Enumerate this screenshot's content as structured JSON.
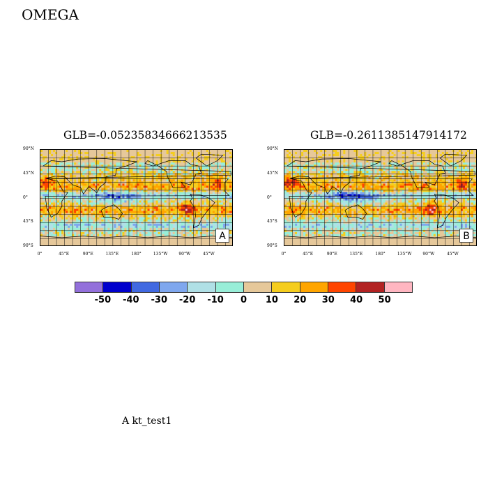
{
  "figure_title": "OMEGA",
  "panels": [
    {
      "title": "GLB=-0.05235834666213535",
      "label": "A",
      "y_ticks": [
        "90°N",
        "45°N",
        "0°",
        "45°S",
        "90°S"
      ],
      "x_ticks": [
        "0°",
        "45°E",
        "90°E",
        "135°E",
        "180°",
        "135°W",
        "90°W",
        "45°W"
      ]
    },
    {
      "title": "GLB=-0.2611385147914172",
      "label": "B",
      "y_ticks": [
        "90°N",
        "45°N",
        "0°",
        "45°S",
        "90°S"
      ],
      "x_ticks": [
        "0°",
        "45°E",
        "90°E",
        "135°E",
        "180°",
        "135°W",
        "90°W",
        "45°W"
      ]
    }
  ],
  "colorbar": {
    "colors": [
      "#9370DB",
      "#0000CD",
      "#4169E1",
      "#7FA7EE",
      "#B0E0E6",
      "#98EED8",
      "#E6C89A",
      "#F5CD1E",
      "#FFA500",
      "#FF4500",
      "#B22222",
      "#FFB6C1"
    ],
    "labels": [
      "-50",
      "-40",
      "-30",
      "-20",
      "-10",
      "0",
      "10",
      "20",
      "30",
      "40",
      "50"
    ]
  },
  "footer": "A  kt_test1"
}
